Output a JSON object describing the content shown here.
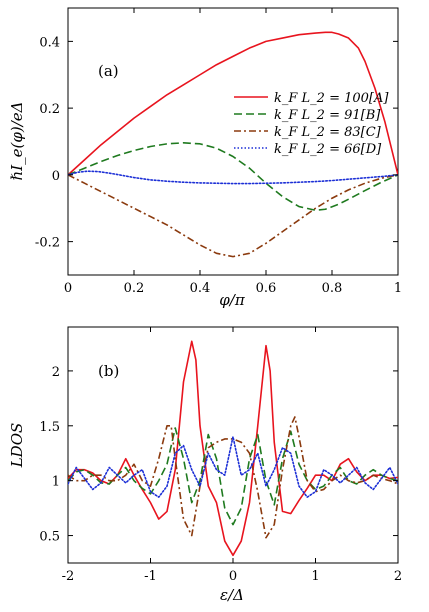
{
  "chart_data": [
    {
      "panel": "(a)",
      "type": "line",
      "xlabel": "φ/π",
      "ylabel": "ℏI_e(φ)/eΔ",
      "xlim": [
        0,
        1
      ],
      "ylim": [
        -0.3,
        0.5
      ],
      "xticks": [
        0,
        0.2,
        0.4,
        0.6,
        0.8,
        1
      ],
      "xtick_labels": [
        "0",
        "0.2",
        "0.4",
        "0.6",
        "0.8",
        "1"
      ],
      "yticks": [
        -0.2,
        0,
        0.2,
        0.4
      ],
      "ytick_labels": [
        "-0.2",
        "0",
        "0.2",
        "0.4"
      ],
      "grid": false,
      "legend_position": "top-right",
      "series": [
        {
          "name": "k_F L_2 = 100[A]",
          "color": "#e8141e",
          "style": "solid",
          "x": [
            0,
            0.05,
            0.1,
            0.15,
            0.2,
            0.25,
            0.3,
            0.35,
            0.4,
            0.45,
            0.5,
            0.55,
            0.6,
            0.65,
            0.7,
            0.75,
            0.78,
            0.8,
            0.82,
            0.85,
            0.88,
            0.9,
            0.93,
            0.96,
            0.98,
            1.0
          ],
          "y": [
            0,
            0.045,
            0.09,
            0.13,
            0.17,
            0.205,
            0.24,
            0.27,
            0.3,
            0.33,
            0.355,
            0.38,
            0.4,
            0.41,
            0.42,
            0.425,
            0.427,
            0.427,
            0.422,
            0.41,
            0.38,
            0.34,
            0.26,
            0.16,
            0.08,
            0
          ]
        },
        {
          "name": "k_F L_2 = 91[B]",
          "color": "#1f7a1f",
          "style": "dashed",
          "x": [
            0,
            0.05,
            0.1,
            0.15,
            0.2,
            0.25,
            0.3,
            0.35,
            0.4,
            0.45,
            0.5,
            0.55,
            0.6,
            0.65,
            0.7,
            0.75,
            0.78,
            0.82,
            0.86,
            0.9,
            0.95,
            1.0
          ],
          "y": [
            0,
            0.02,
            0.04,
            0.058,
            0.073,
            0.085,
            0.093,
            0.096,
            0.093,
            0.08,
            0.055,
            0.02,
            -0.025,
            -0.065,
            -0.095,
            -0.106,
            -0.103,
            -0.088,
            -0.068,
            -0.047,
            -0.022,
            0
          ]
        },
        {
          "name": "k_F L_2 = 83[C]",
          "color": "#8b3a0e",
          "style": "dashdot",
          "x": [
            0,
            0.05,
            0.1,
            0.15,
            0.2,
            0.25,
            0.3,
            0.35,
            0.4,
            0.45,
            0.5,
            0.55,
            0.6,
            0.65,
            0.7,
            0.75,
            0.8,
            0.85,
            0.9,
            0.95,
            1.0
          ],
          "y": [
            0,
            -0.025,
            -0.05,
            -0.075,
            -0.1,
            -0.125,
            -0.15,
            -0.18,
            -0.21,
            -0.235,
            -0.245,
            -0.235,
            -0.205,
            -0.17,
            -0.135,
            -0.1,
            -0.07,
            -0.045,
            -0.025,
            -0.01,
            0
          ]
        },
        {
          "name": "k_F L_2 = 66[D]",
          "color": "#1c2fd6",
          "style": "dotted",
          "x": [
            0,
            0.03,
            0.06,
            0.09,
            0.12,
            0.15,
            0.2,
            0.25,
            0.3,
            0.35,
            0.4,
            0.45,
            0.5,
            0.55,
            0.6,
            0.65,
            0.7,
            0.75,
            0.8,
            0.85,
            0.9,
            0.95,
            1.0
          ],
          "y": [
            0,
            0.008,
            0.011,
            0.01,
            0.006,
            0.001,
            -0.008,
            -0.015,
            -0.019,
            -0.022,
            -0.024,
            -0.025,
            -0.026,
            -0.026,
            -0.025,
            -0.024,
            -0.022,
            -0.02,
            -0.017,
            -0.013,
            -0.009,
            -0.005,
            0
          ]
        }
      ]
    },
    {
      "panel": "(b)",
      "type": "line",
      "xlabel": "ε/Δ",
      "ylabel": "LDOS",
      "xlim": [
        -2,
        2
      ],
      "ylim": [
        0.25,
        2.4
      ],
      "xticks": [
        -2,
        -1,
        0,
        1,
        2
      ],
      "xtick_labels": [
        "-2",
        "-1",
        "0",
        "1",
        "2"
      ],
      "yticks": [
        0.5,
        1,
        1.5,
        2
      ],
      "ytick_labels": [
        "0.5",
        "1",
        "1.5",
        "2"
      ],
      "grid": false,
      "series": [
        {
          "name": "A",
          "color": "#e8141e",
          "style": "solid",
          "x": [
            -2.0,
            -1.9,
            -1.8,
            -1.7,
            -1.6,
            -1.5,
            -1.4,
            -1.3,
            -1.2,
            -1.1,
            -1.0,
            -0.9,
            -0.8,
            -0.7,
            -0.6,
            -0.5,
            -0.45,
            -0.4,
            -0.3,
            -0.2,
            -0.1,
            0.0,
            0.1,
            0.2,
            0.3,
            0.4,
            0.45,
            0.5,
            0.6,
            0.7,
            0.8,
            0.9,
            1.0,
            1.1,
            1.2,
            1.3,
            1.4,
            1.5,
            1.6,
            1.7,
            1.8,
            1.9,
            2.0
          ],
          "y": [
            1.02,
            1.1,
            1.1,
            1.07,
            1.0,
            0.97,
            1.05,
            1.2,
            1.05,
            0.92,
            0.8,
            0.65,
            0.72,
            1.1,
            1.9,
            2.27,
            2.1,
            1.5,
            0.95,
            0.8,
            0.45,
            0.32,
            0.45,
            0.8,
            1.5,
            2.23,
            2.0,
            1.35,
            0.72,
            0.7,
            0.82,
            0.93,
            1.05,
            1.05,
            1.0,
            1.15,
            1.2,
            1.08,
            1.0,
            1.05,
            1.05,
            1.02,
            1.03
          ]
        },
        {
          "name": "B",
          "color": "#1f7a1f",
          "style": "dashed",
          "x": [
            -2.0,
            -1.9,
            -1.8,
            -1.7,
            -1.6,
            -1.5,
            -1.4,
            -1.3,
            -1.2,
            -1.1,
            -1.0,
            -0.9,
            -0.8,
            -0.7,
            -0.6,
            -0.5,
            -0.4,
            -0.3,
            -0.2,
            -0.1,
            0.0,
            0.1,
            0.2,
            0.3,
            0.4,
            0.5,
            0.6,
            0.7,
            0.8,
            0.9,
            1.0,
            1.1,
            1.2,
            1.3,
            1.4,
            1.5,
            1.6,
            1.7,
            1.8,
            1.9,
            2.0
          ],
          "y": [
            1.0,
            1.08,
            1.1,
            1.05,
            0.98,
            0.97,
            1.05,
            1.12,
            1.0,
            0.93,
            0.88,
            1.0,
            1.15,
            1.48,
            1.2,
            0.8,
            1.0,
            1.42,
            1.2,
            0.75,
            0.6,
            0.75,
            1.2,
            1.42,
            1.0,
            0.78,
            1.2,
            1.45,
            1.15,
            1.0,
            0.92,
            0.95,
            1.05,
            1.12,
            1.0,
            0.97,
            1.05,
            1.1,
            1.05,
            1.02,
            1.0
          ]
        },
        {
          "name": "C",
          "color": "#8b3a0e",
          "style": "dashdot",
          "x": [
            -2.0,
            -1.9,
            -1.8,
            -1.7,
            -1.6,
            -1.5,
            -1.4,
            -1.3,
            -1.2,
            -1.1,
            -1.0,
            -0.9,
            -0.8,
            -0.75,
            -0.7,
            -0.6,
            -0.5,
            -0.4,
            -0.3,
            -0.2,
            -0.1,
            0.0,
            0.1,
            0.2,
            0.3,
            0.4,
            0.5,
            0.6,
            0.7,
            0.75,
            0.8,
            0.9,
            1.0,
            1.1,
            1.2,
            1.3,
            1.4,
            1.5,
            1.6,
            1.7,
            1.8,
            1.9,
            2.0
          ],
          "y": [
            1.05,
            1.0,
            1.0,
            1.05,
            1.05,
            1.0,
            1.0,
            1.05,
            1.15,
            1.0,
            0.95,
            1.2,
            1.5,
            1.5,
            1.2,
            0.65,
            0.5,
            0.95,
            1.3,
            1.35,
            1.38,
            1.38,
            1.35,
            1.25,
            0.9,
            0.48,
            0.6,
            1.1,
            1.5,
            1.58,
            1.4,
            1.0,
            0.9,
            0.92,
            1.0,
            1.05,
            1.0,
            0.98,
            1.0,
            1.05,
            1.02,
            1.0,
            0.97
          ]
        },
        {
          "name": "D",
          "color": "#1c2fd6",
          "style": "dotted",
          "x": [
            -2.0,
            -1.9,
            -1.8,
            -1.7,
            -1.6,
            -1.5,
            -1.4,
            -1.3,
            -1.2,
            -1.1,
            -1.0,
            -0.9,
            -0.8,
            -0.7,
            -0.6,
            -0.5,
            -0.4,
            -0.3,
            -0.2,
            -0.1,
            0.0,
            0.1,
            0.2,
            0.3,
            0.4,
            0.5,
            0.6,
            0.7,
            0.8,
            0.9,
            1.0,
            1.1,
            1.2,
            1.3,
            1.4,
            1.5,
            1.6,
            1.7,
            1.8,
            1.9,
            2.0
          ],
          "y": [
            0.97,
            1.12,
            1.02,
            0.92,
            0.98,
            1.12,
            1.05,
            0.98,
            1.05,
            1.1,
            0.9,
            0.85,
            0.95,
            1.25,
            1.32,
            1.1,
            0.95,
            1.25,
            1.1,
            1.05,
            1.4,
            1.05,
            1.1,
            1.25,
            0.95,
            1.1,
            1.3,
            1.25,
            0.95,
            0.85,
            0.9,
            1.1,
            1.05,
            0.98,
            1.05,
            1.12,
            0.98,
            0.92,
            1.02,
            1.12,
            0.97
          ]
        }
      ]
    }
  ]
}
